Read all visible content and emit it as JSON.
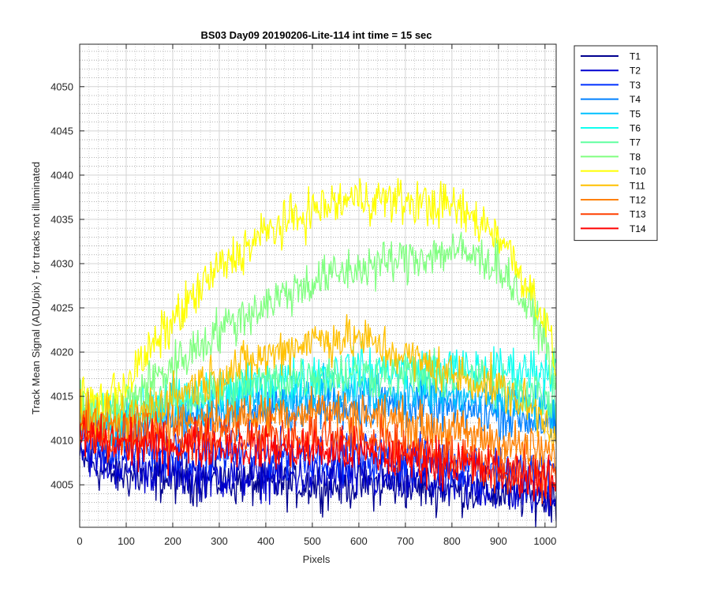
{
  "chart_data": {
    "type": "line",
    "title": "BS03 Day09 20190206-Lite-114 int time = 15 sec",
    "xlabel": "Pixels",
    "ylabel": "Track Mean Signal (ADU/pix) - for tracks not illuminated",
    "xlim": [
      0,
      1024
    ],
    "ylim": [
      4000.2,
      4054.8
    ],
    "xticks": [
      0,
      100,
      200,
      300,
      400,
      500,
      600,
      700,
      800,
      900,
      1000
    ],
    "yticks": [
      4005,
      4010,
      4015,
      4020,
      4025,
      4030,
      4035,
      4040,
      4045,
      4050
    ],
    "grid": true,
    "minor_grid": true,
    "legend_position": "outside-top-right",
    "series": [
      {
        "name": "T1",
        "color": "#00008f",
        "x": [
          0,
          50,
          100,
          200,
          300,
          400,
          500,
          600,
          700,
          800,
          900,
          1000,
          1024
        ],
        "y": [
          4008.0,
          4006.5,
          4006.0,
          4005.5,
          4005.5,
          4005.0,
          4005.0,
          4005.0,
          4004.8,
          4004.5,
          4004.0,
          4003.5,
          4003.5
        ]
      },
      {
        "name": "T2",
        "color": "#0000d0",
        "x": [
          0,
          50,
          100,
          200,
          300,
          400,
          500,
          600,
          700,
          800,
          900,
          1000,
          1024
        ],
        "y": [
          4009.5,
          4007.5,
          4007.0,
          4006.5,
          4006.0,
          4006.0,
          4006.0,
          4005.8,
          4005.5,
          4005.0,
          4004.5,
          4004.0,
          4004.0
        ]
      },
      {
        "name": "T3",
        "color": "#0030ff",
        "x": [
          0,
          50,
          100,
          200,
          300,
          400,
          500,
          600,
          700,
          800,
          900,
          1000,
          1024
        ],
        "y": [
          4010.5,
          4009.5,
          4009.0,
          4008.8,
          4008.5,
          4008.5,
          4008.5,
          4008.3,
          4008.0,
          4007.5,
          4007.0,
          4006.5,
          4006.5
        ]
      },
      {
        "name": "T4",
        "color": "#0080ff",
        "x": [
          0,
          50,
          100,
          200,
          300,
          400,
          500,
          600,
          700,
          800,
          900,
          1000,
          1024
        ],
        "y": [
          4012.0,
          4011.5,
          4011.5,
          4012.5,
          4013.0,
          4013.5,
          4013.8,
          4014.0,
          4014.0,
          4013.5,
          4013.0,
          4012.0,
          4011.5
        ]
      },
      {
        "name": "T5",
        "color": "#00c0ff",
        "x": [
          0,
          50,
          100,
          200,
          300,
          400,
          500,
          600,
          700,
          800,
          900,
          1000,
          1024
        ],
        "y": [
          4012.5,
          4012.0,
          4012.5,
          4013.5,
          4014.5,
          4015.0,
          4015.5,
          4015.5,
          4015.5,
          4015.0,
          4014.5,
          4013.5,
          4013.0
        ]
      },
      {
        "name": "T6",
        "color": "#10ffef",
        "x": [
          0,
          50,
          100,
          200,
          300,
          400,
          500,
          600,
          700,
          800,
          900,
          1000,
          1024
        ],
        "y": [
          4013.0,
          4012.5,
          4013.0,
          4014.5,
          4015.5,
          4016.5,
          4017.5,
          4018.0,
          4018.0,
          4018.0,
          4018.0,
          4018.0,
          4018.0
        ]
      },
      {
        "name": "T7",
        "color": "#60ffa0",
        "x": [
          0,
          50,
          100,
          200,
          300,
          400,
          500,
          600,
          700,
          800,
          900,
          1000,
          1024
        ],
        "y": [
          4013.0,
          4012.5,
          4013.0,
          4014.5,
          4015.5,
          4016.5,
          4017.5,
          4017.5,
          4017.5,
          4017.0,
          4016.5,
          4015.0,
          4014.0
        ]
      },
      {
        "name": "T8",
        "color": "#80ff80",
        "x": [
          0,
          50,
          100,
          200,
          300,
          400,
          500,
          600,
          700,
          800,
          900,
          1000,
          1024
        ],
        "y": [
          4013.5,
          4013.0,
          4014.5,
          4018.5,
          4022.5,
          4025.5,
          4028.0,
          4029.5,
          4030.5,
          4031.5,
          4030.0,
          4022.0,
          4016.0
        ]
      },
      {
        "name": "T10",
        "color": "#ffff00",
        "x": [
          0,
          50,
          100,
          200,
          300,
          400,
          500,
          600,
          700,
          800,
          900,
          1000,
          1024
        ],
        "y": [
          4015.0,
          4014.5,
          4016.5,
          4023.5,
          4029.5,
          4033.5,
          4036.0,
          4037.5,
          4037.0,
          4036.5,
          4033.5,
          4024.0,
          4018.0
        ]
      },
      {
        "name": "T11",
        "color": "#ffc000",
        "x": [
          0,
          50,
          100,
          200,
          300,
          400,
          500,
          600,
          700,
          800,
          900,
          1000,
          1024
        ],
        "y": [
          4012.5,
          4012.0,
          4012.5,
          4015.0,
          4017.5,
          4019.5,
          4021.5,
          4021.5,
          4019.5,
          4017.5,
          4016.0,
          4012.5,
          4010.5
        ]
      },
      {
        "name": "T12",
        "color": "#ff8000",
        "x": [
          0,
          50,
          100,
          200,
          300,
          400,
          500,
          600,
          700,
          800,
          900,
          1000,
          1024
        ],
        "y": [
          4012.0,
          4011.5,
          4011.5,
          4012.0,
          4012.5,
          4013.0,
          4013.5,
          4013.0,
          4012.0,
          4011.0,
          4010.0,
          4008.5,
          4008.0
        ]
      },
      {
        "name": "T13",
        "color": "#ff4000",
        "x": [
          0,
          50,
          100,
          200,
          300,
          400,
          500,
          600,
          700,
          800,
          900,
          1000,
          1024
        ],
        "y": [
          4011.5,
          4011.0,
          4010.5,
          4010.5,
          4010.5,
          4010.5,
          4010.5,
          4010.0,
          4009.0,
          4008.0,
          4007.0,
          4006.0,
          4005.5
        ]
      },
      {
        "name": "T14",
        "color": "#ff0000",
        "x": [
          0,
          50,
          100,
          200,
          300,
          400,
          500,
          600,
          700,
          800,
          900,
          1000,
          1024
        ],
        "y": [
          4010.5,
          4010.0,
          4009.5,
          4009.5,
          4009.5,
          4009.0,
          4009.0,
          4008.5,
          4008.0,
          4007.5,
          4006.5,
          4005.5,
          4005.0
        ]
      }
    ]
  }
}
